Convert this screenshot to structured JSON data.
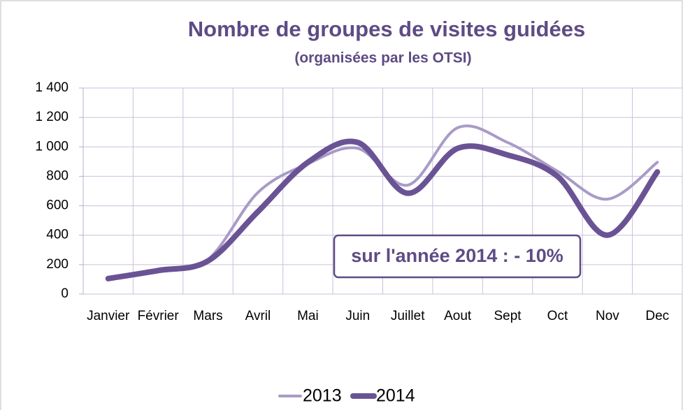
{
  "chart_data": {
    "type": "line",
    "title": "Nombre de groupes de visites guidées",
    "subtitle": "(organisées par les OTSI)",
    "annotation": "sur l'année 2014 : - 10%",
    "categories": [
      "Janvier",
      "Février",
      "Mars",
      "Avril",
      "Mai",
      "Juin",
      "Juillet",
      "Aout",
      "Sept",
      "Oct",
      "Nov",
      "Dec"
    ],
    "series": [
      {
        "name": "2013",
        "color": "#a99bc6",
        "values": [
          110,
          150,
          235,
          690,
          885,
          990,
          740,
          1130,
          1030,
          835,
          645,
          895
        ]
      },
      {
        "name": "2014",
        "color": "#6a5394",
        "values": [
          105,
          160,
          225,
          560,
          895,
          1030,
          685,
          990,
          945,
          800,
          400,
          830
        ]
      }
    ],
    "ylim": [
      0,
      1400
    ],
    "yticks": [
      0,
      200,
      400,
      600,
      800,
      {
        "value": 1000,
        "label": "1 000"
      },
      {
        "value": 1200,
        "label": "1 200"
      },
      {
        "value": 1400,
        "label": "1 400"
      }
    ],
    "grid": true,
    "legend": "bottom",
    "smooth": true
  }
}
